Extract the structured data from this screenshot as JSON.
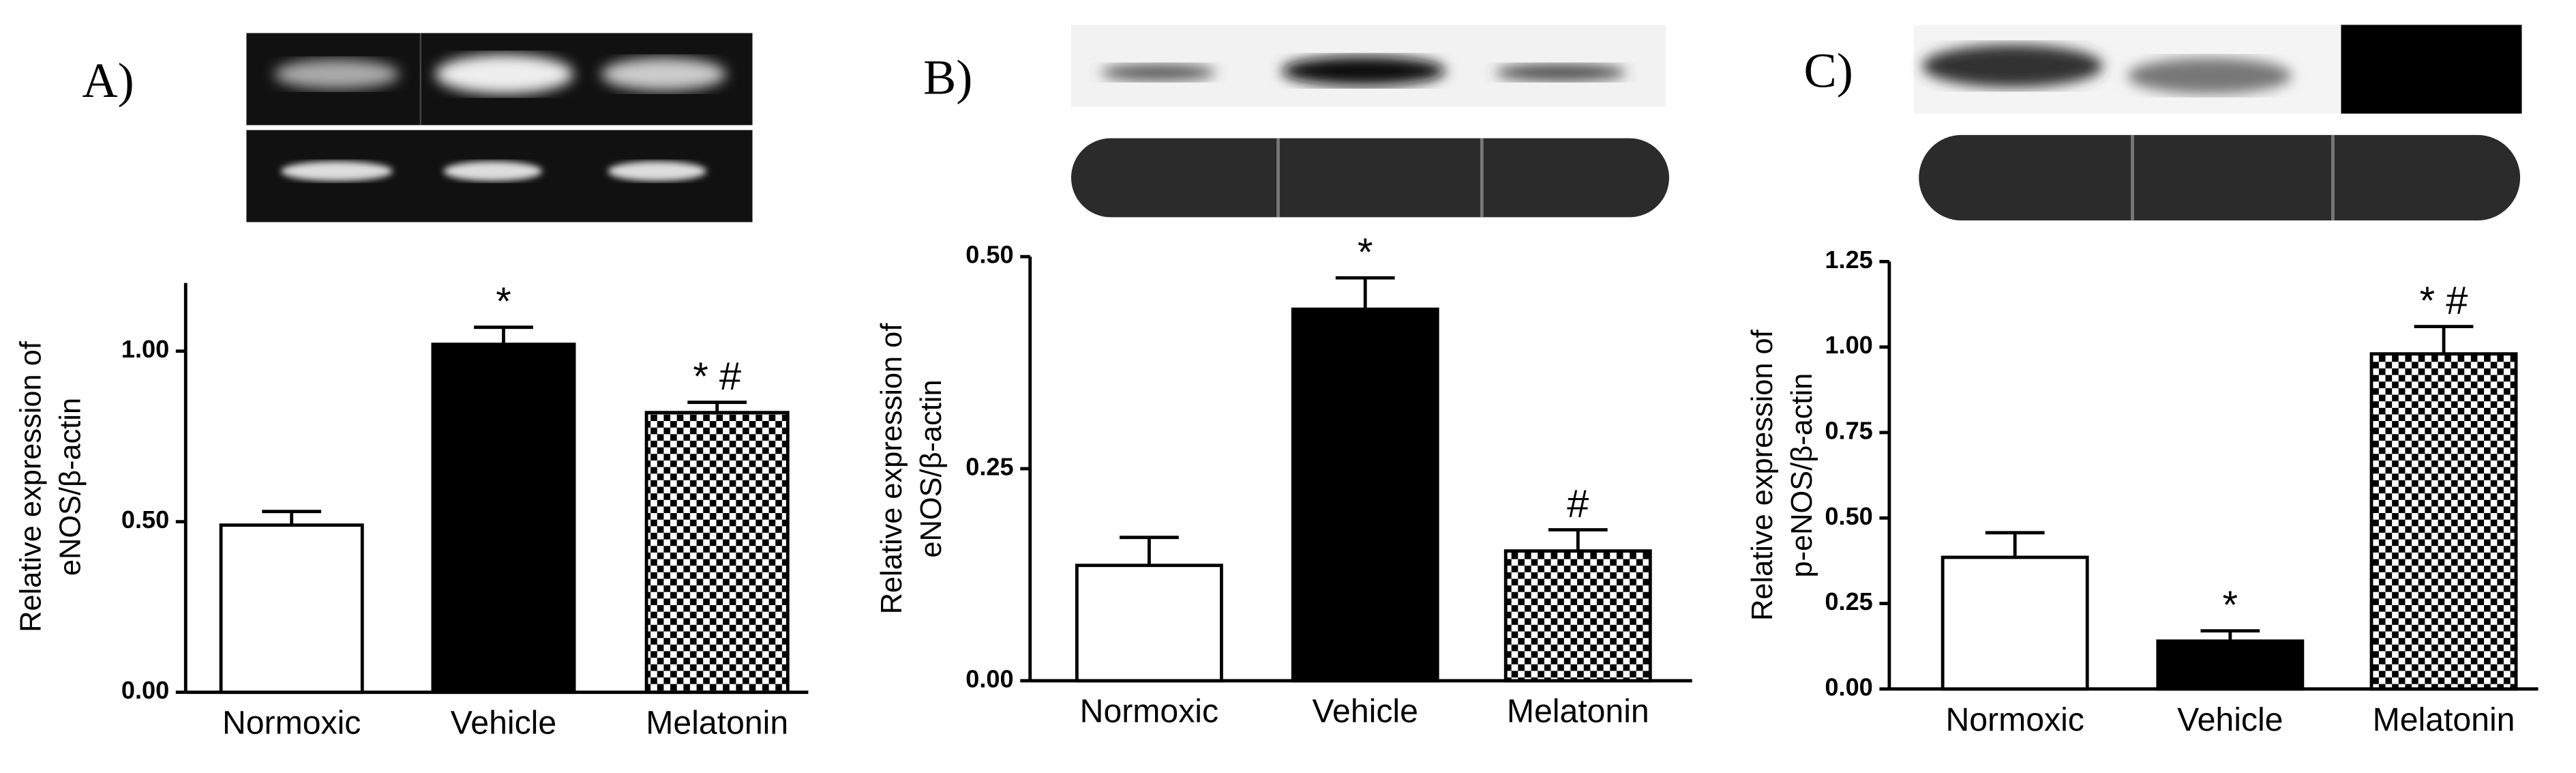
{
  "chart_data": [
    {
      "type": "bar",
      "panel_label": "A)",
      "ylabel": [
        "Relative expression of",
        "eNOS/β-actin"
      ],
      "categories": [
        "Normoxic",
        "Vehicle",
        "Melatonin"
      ],
      "values": [
        0.49,
        1.02,
        0.82
      ],
      "errors": [
        0.04,
        0.05,
        0.03
      ],
      "annotations": [
        null,
        "*",
        "* #"
      ],
      "colors": [
        "#ffffff",
        "#000000",
        "#000000"
      ],
      "patterns": [
        "solid",
        "solid",
        "checkerboard"
      ],
      "ylim": [
        0,
        1.2
      ],
      "yticks": [
        {
          "value": 0,
          "label": "0.00"
        },
        {
          "value": 0.5,
          "label": "0.50"
        },
        {
          "value": 1,
          "label": "1.00"
        }
      ]
    },
    {
      "type": "bar",
      "panel_label": "B)",
      "ylabel": [
        "Relative expression of",
        "eNOS/β-actin"
      ],
      "categories": [
        "Normoxic",
        "Vehicle",
        "Melatonin"
      ],
      "values": [
        0.136,
        0.438,
        0.153
      ],
      "errors": [
        0.033,
        0.037,
        0.025
      ],
      "annotations": [
        null,
        "*",
        "#"
      ],
      "colors": [
        "#ffffff",
        "#000000",
        "#000000"
      ],
      "patterns": [
        "solid",
        "solid",
        "checkerboard"
      ],
      "ylim": [
        0,
        0.5
      ],
      "yticks": [
        {
          "value": 0,
          "label": "0.00"
        },
        0.25,
        {
          "value": 0.5,
          "label": "0.50"
        }
      ]
    },
    {
      "type": "bar",
      "panel_label": "C)",
      "ylabel": [
        "Relative expression of",
        "p-eNOS/β-actin"
      ],
      "categories": [
        "Normoxic",
        "Vehicle",
        "Melatonin"
      ],
      "values": [
        0.385,
        0.14,
        0.98
      ],
      "errors": [
        0.072,
        0.03,
        0.08
      ],
      "annotations": [
        null,
        "*",
        "* #"
      ],
      "colors": [
        "#ffffff",
        "#000000",
        "#000000"
      ],
      "patterns": [
        "solid",
        "solid",
        "checkerboard"
      ],
      "ylim": [
        0,
        1.25
      ],
      "yticks": [
        {
          "value": 0,
          "label": "0.00"
        },
        0.25,
        {
          "value": 0.5,
          "label": "0.50"
        },
        0.75,
        {
          "value": 1,
          "label": "1.00"
        },
        1.25
      ]
    }
  ]
}
